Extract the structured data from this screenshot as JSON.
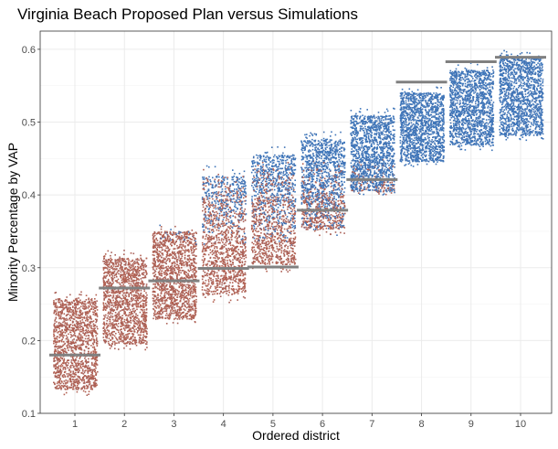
{
  "chart_data": {
    "type": "scatter",
    "title": "Virginia Beach Proposed Plan versus Simulations",
    "xlabel": "Ordered district",
    "ylabel": "Minority Percentage by VAP",
    "ylim": [
      0.1,
      0.625
    ],
    "yticks": [
      "0.1",
      "0.2",
      "0.3",
      "0.4",
      "0.5",
      "0.6"
    ],
    "categories": [
      "1",
      "2",
      "3",
      "4",
      "5",
      "6",
      "7",
      "8",
      "9",
      "10"
    ],
    "grid": true,
    "legend": "none",
    "colors": {
      "simulation_low": "#b5604f",
      "simulation_high": "#3a76bd",
      "proposed": "#808080",
      "grid": "#ebebeb"
    },
    "series": [
      {
        "name": "",
        "description": "simulated district minority VAP share (range per ordered district)",
        "ranges": [
          {
            "district": "1",
            "min": 0.125,
            "max": 0.27
          },
          {
            "district": "2",
            "min": 0.188,
            "max": 0.325
          },
          {
            "district": "3",
            "min": 0.222,
            "max": 0.362
          },
          {
            "district": "4",
            "min": 0.252,
            "max": 0.442
          },
          {
            "district": "5",
            "min": 0.295,
            "max": 0.47
          },
          {
            "district": "6",
            "min": 0.345,
            "max": 0.488
          },
          {
            "district": "7",
            "min": 0.398,
            "max": 0.52
          },
          {
            "district": "8",
            "min": 0.44,
            "max": 0.55
          },
          {
            "district": "9",
            "min": 0.462,
            "max": 0.582
          },
          {
            "district": "10",
            "min": 0.475,
            "max": 0.6
          }
        ]
      },
      {
        "name": "",
        "description": "proposed plan",
        "values": [
          0.18,
          0.272,
          0.282,
          0.299,
          0.301,
          0.379,
          0.421,
          0.555,
          0.583,
          0.589
        ]
      }
    ]
  }
}
